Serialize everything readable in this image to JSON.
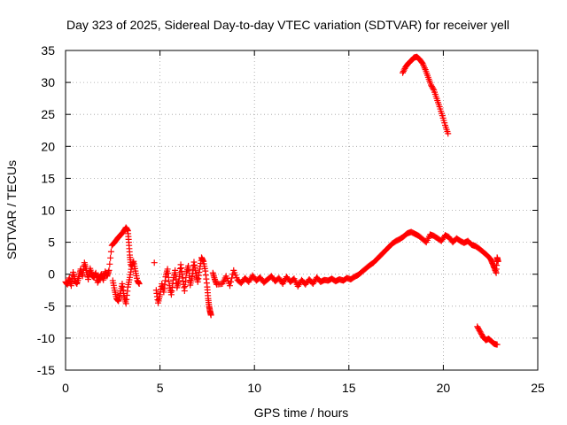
{
  "chart_data": {
    "type": "scatter",
    "title": "Day 323 of 2025, Sidereal Day-to-day VTEC variation (SDTVAR) for receiver yell",
    "xlabel": "GPS time / hours",
    "ylabel": "SDTVAR / TECUs",
    "xlim": [
      0,
      25
    ],
    "ylim": [
      -15,
      35
    ],
    "xticks": [
      "0",
      "5",
      "10",
      "15",
      "20",
      "25"
    ],
    "yticks": [
      "-15",
      "-10",
      "-5",
      "0",
      "5",
      "10",
      "15",
      "20",
      "25",
      "30",
      "35"
    ],
    "grid": true,
    "marker": "plus",
    "color": "#ff0000",
    "series": [
      {
        "name": "SDTVAR",
        "points": [
          [
            0.0,
            -1.2
          ],
          [
            0.1,
            -1.6
          ],
          [
            0.2,
            -0.6
          ],
          [
            0.3,
            -1.8
          ],
          [
            0.4,
            0.3
          ],
          [
            0.5,
            -1.0
          ],
          [
            0.6,
            -1.5
          ],
          [
            0.7,
            -0.4
          ],
          [
            0.8,
            0.8
          ],
          [
            0.9,
            -0.3
          ],
          [
            1.0,
            1.8
          ],
          [
            1.1,
            0.6
          ],
          [
            1.2,
            -0.8
          ],
          [
            1.3,
            0.9
          ],
          [
            1.4,
            -0.2
          ],
          [
            1.5,
            -0.5
          ],
          [
            1.6,
            0.2
          ],
          [
            1.7,
            -1.3
          ],
          [
            1.8,
            -0.6
          ],
          [
            1.9,
            0.0
          ],
          [
            2.0,
            -0.9
          ],
          [
            2.1,
            0.4
          ],
          [
            2.2,
            -0.3
          ],
          [
            2.3,
            0.6
          ],
          [
            2.45,
            4.5
          ],
          [
            2.6,
            5.0
          ],
          [
            2.75,
            5.6
          ],
          [
            2.9,
            6.1
          ],
          [
            3.05,
            6.6
          ],
          [
            3.2,
            7.3
          ],
          [
            3.3,
            6.8
          ],
          [
            3.35,
            5.0
          ],
          [
            3.4,
            3.0
          ],
          [
            3.45,
            1.5
          ],
          [
            2.5,
            -1.0
          ],
          [
            2.6,
            -2.5
          ],
          [
            2.7,
            -3.8
          ],
          [
            2.8,
            -4.2
          ],
          [
            2.9,
            -3.0
          ],
          [
            3.0,
            -1.5
          ],
          [
            3.1,
            -3.5
          ],
          [
            3.2,
            -4.6
          ],
          [
            3.3,
            -2.0
          ],
          [
            3.4,
            -0.5
          ],
          [
            3.5,
            1.2
          ],
          [
            3.6,
            2.0
          ],
          [
            3.7,
            0.5
          ],
          [
            3.8,
            -1.0
          ],
          [
            3.9,
            -1.5
          ],
          [
            4.7,
            1.8
          ],
          [
            4.8,
            -2.5
          ],
          [
            4.9,
            -4.5
          ],
          [
            5.0,
            -3.2
          ],
          [
            5.1,
            -1.5
          ],
          [
            5.2,
            -2.8
          ],
          [
            5.3,
            -0.4
          ],
          [
            5.4,
            0.8
          ],
          [
            5.5,
            -1.8
          ],
          [
            5.6,
            -3.2
          ],
          [
            5.7,
            -0.9
          ],
          [
            5.8,
            0.6
          ],
          [
            5.9,
            -2.1
          ],
          [
            6.0,
            -1.0
          ],
          [
            6.1,
            1.5
          ],
          [
            6.2,
            -0.6
          ],
          [
            6.3,
            -2.6
          ],
          [
            6.4,
            0.2
          ],
          [
            6.5,
            1.3
          ],
          [
            6.6,
            -1.7
          ],
          [
            6.7,
            -0.4
          ],
          [
            6.8,
            1.9
          ],
          [
            6.9,
            0.1
          ],
          [
            7.0,
            -1.2
          ],
          [
            7.1,
            0.8
          ],
          [
            7.2,
            2.6
          ],
          [
            7.3,
            2.0
          ],
          [
            7.4,
            0.5
          ],
          [
            7.5,
            -2.0
          ],
          [
            7.55,
            -3.8
          ],
          [
            7.6,
            -5.0
          ],
          [
            7.65,
            -5.8
          ],
          [
            7.7,
            -6.4
          ],
          [
            7.8,
            0.2
          ],
          [
            7.9,
            -0.8
          ],
          [
            8.0,
            -1.6
          ],
          [
            8.3,
            -1.5
          ],
          [
            8.5,
            -0.3
          ],
          [
            8.7,
            -1.8
          ],
          [
            8.9,
            0.6
          ],
          [
            9.1,
            -0.9
          ],
          [
            9.3,
            -1.4
          ],
          [
            9.5,
            -0.6
          ],
          [
            9.7,
            -1.2
          ],
          [
            9.9,
            -0.2
          ],
          [
            10.1,
            -1.0
          ],
          [
            10.3,
            -0.5
          ],
          [
            10.5,
            -1.3
          ],
          [
            10.7,
            -0.8
          ],
          [
            10.9,
            -0.3
          ],
          [
            11.1,
            -1.1
          ],
          [
            11.3,
            -0.6
          ],
          [
            11.5,
            -1.5
          ],
          [
            11.7,
            -0.4
          ],
          [
            11.9,
            -1.2
          ],
          [
            12.1,
            -0.7
          ],
          [
            12.3,
            -1.9
          ],
          [
            12.5,
            -0.9
          ],
          [
            12.7,
            -1.6
          ],
          [
            12.9,
            -0.8
          ],
          [
            13.1,
            -1.5
          ],
          [
            13.3,
            -0.5
          ],
          [
            13.5,
            -1.2
          ],
          [
            13.7,
            -0.9
          ],
          [
            13.9,
            -1.0
          ],
          [
            14.1,
            -0.7
          ],
          [
            14.3,
            -1.1
          ],
          [
            14.5,
            -0.8
          ],
          [
            14.7,
            -1.0
          ],
          [
            14.9,
            -0.6
          ],
          [
            15.1,
            -0.8
          ],
          [
            15.3,
            -0.4
          ],
          [
            15.5,
            -0.1
          ],
          [
            15.7,
            0.4
          ],
          [
            15.9,
            0.9
          ],
          [
            16.1,
            1.4
          ],
          [
            16.3,
            1.8
          ],
          [
            16.5,
            2.4
          ],
          [
            16.7,
            3.0
          ],
          [
            16.9,
            3.6
          ],
          [
            17.1,
            4.2
          ],
          [
            17.3,
            4.8
          ],
          [
            17.5,
            5.2
          ],
          [
            17.7,
            5.5
          ],
          [
            17.9,
            5.9
          ],
          [
            18.1,
            6.4
          ],
          [
            18.3,
            6.6
          ],
          [
            18.5,
            6.3
          ],
          [
            18.7,
            6.0
          ],
          [
            18.9,
            5.5
          ],
          [
            19.1,
            5.0
          ],
          [
            19.3,
            6.2
          ],
          [
            19.5,
            6.0
          ],
          [
            19.7,
            5.6
          ],
          [
            19.9,
            5.2
          ],
          [
            20.1,
            6.1
          ],
          [
            20.3,
            5.8
          ],
          [
            20.5,
            5.0
          ],
          [
            20.7,
            5.6
          ],
          [
            20.9,
            5.2
          ],
          [
            21.1,
            4.9
          ],
          [
            21.3,
            5.2
          ],
          [
            21.5,
            4.6
          ],
          [
            21.7,
            4.4
          ],
          [
            21.9,
            4.0
          ],
          [
            22.1,
            3.5
          ],
          [
            22.3,
            3.0
          ],
          [
            22.5,
            2.4
          ],
          [
            22.6,
            1.7
          ],
          [
            22.7,
            1.0
          ],
          [
            22.8,
            0.2
          ],
          [
            22.85,
            2.6
          ],
          [
            22.9,
            2.0
          ],
          [
            17.85,
            31.5
          ],
          [
            18.0,
            32.4
          ],
          [
            18.15,
            33.0
          ],
          [
            18.3,
            33.4
          ],
          [
            18.45,
            33.9
          ],
          [
            18.6,
            34.0
          ],
          [
            18.75,
            33.6
          ],
          [
            18.9,
            33.0
          ],
          [
            19.05,
            32.0
          ],
          [
            19.2,
            30.8
          ],
          [
            19.35,
            29.6
          ],
          [
            19.5,
            28.8
          ],
          [
            19.65,
            27.5
          ],
          [
            19.8,
            26.2
          ],
          [
            19.95,
            24.8
          ],
          [
            20.1,
            23.3
          ],
          [
            20.25,
            22.0
          ],
          [
            21.8,
            -8.2
          ],
          [
            21.95,
            -9.0
          ],
          [
            22.1,
            -9.8
          ],
          [
            22.25,
            -10.3
          ],
          [
            22.4,
            -10.1
          ],
          [
            22.55,
            -10.5
          ],
          [
            22.7,
            -10.9
          ],
          [
            22.85,
            -11.0
          ]
        ]
      }
    ]
  }
}
